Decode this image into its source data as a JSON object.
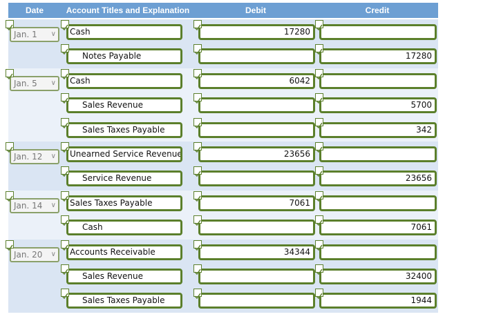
{
  "header": {
    "columns": [
      "Date",
      "Account Titles and Explanation",
      "Debit",
      "Credit"
    ]
  },
  "entries": [
    {
      "date": "Jan. 1",
      "lines": [
        {
          "account": "Cash",
          "debit": 17280
        },
        {
          "account": "Notes Payable",
          "credit": 17280
        }
      ]
    },
    {
      "date": "Jan. 5",
      "lines": [
        {
          "account": "Cash",
          "debit": 6042
        },
        {
          "account": "Sales Revenue",
          "credit": 5700
        },
        {
          "account": "Sales Taxes Payable",
          "credit": 342
        }
      ]
    },
    {
      "date": "Jan. 12",
      "lines": [
        {
          "account": "Unearned Service Revenue",
          "debit": 23656
        },
        {
          "account": "Service Revenue",
          "credit": 23656
        }
      ]
    },
    {
      "date": "Jan. 14",
      "lines": [
        {
          "account": "Sales Taxes Payable",
          "debit": 7061
        },
        {
          "account": "Cash",
          "credit": 7061
        }
      ]
    },
    {
      "date": "Jan. 20",
      "lines": [
        {
          "account": "Accounts Receivable",
          "debit": 34344
        },
        {
          "account": "Sales Revenue",
          "credit": 32400
        },
        {
          "account": "Sales Taxes Payable",
          "credit": 1944
        }
      ]
    }
  ]
}
